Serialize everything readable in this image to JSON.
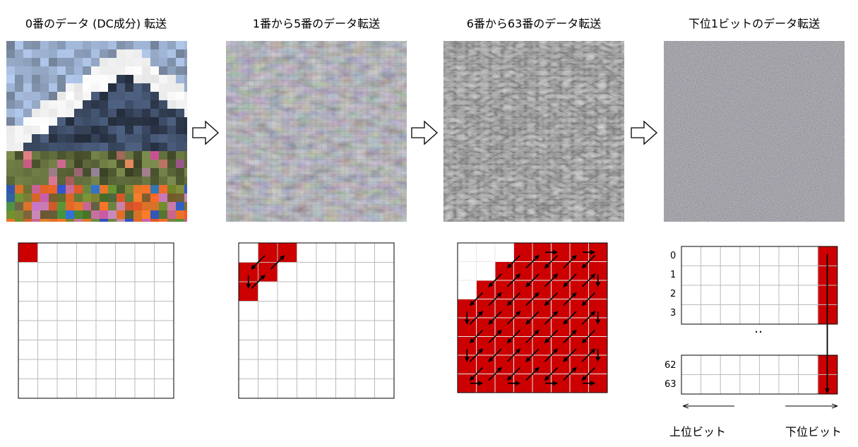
{
  "stages": [
    {
      "title": "0番のデータ (DC成分) 転送",
      "image": "blocky-mountain-landscape"
    },
    {
      "title": "1番から5番のデータ転送",
      "image": "low-frequency-residual"
    },
    {
      "title": "6番から63番のデータ転送",
      "image": "high-frequency-residual"
    },
    {
      "title": "下位1ビットのデータ転送",
      "image": "lsb-noise"
    }
  ],
  "step_arrow_icon": "right-hollow-arrow-icon",
  "grid": {
    "rows": 8,
    "cols": 8
  },
  "zigzag_ranges": [
    {
      "from": 0,
      "to": 0
    },
    {
      "from": 1,
      "to": 5
    },
    {
      "from": 6,
      "to": 63
    }
  ],
  "bit_panel": {
    "row_labels_top": [
      "0",
      "1",
      "2",
      "3"
    ],
    "ellipsis": "‥",
    "row_labels_bottom": [
      "62",
      "63"
    ],
    "cols": 8,
    "label_msb": "上位ビット",
    "label_lsb": "下位ビット"
  },
  "colors": {
    "fill": "#cc0000",
    "grid": "#bbbbbb",
    "border": "#000000",
    "arrow": "#000000"
  }
}
